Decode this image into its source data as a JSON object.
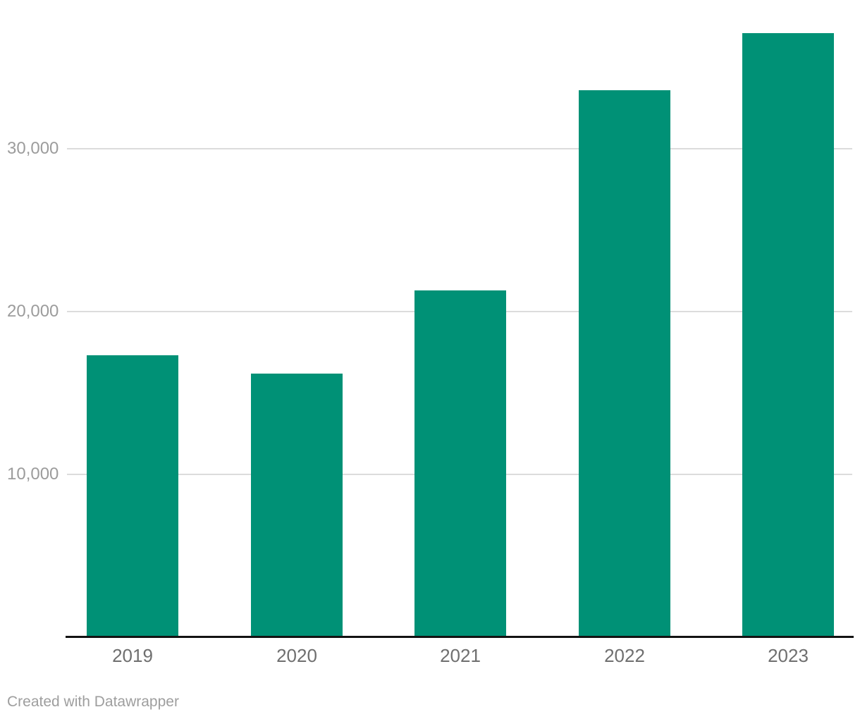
{
  "chart_data": {
    "type": "bar",
    "categories": [
      "2019",
      "2020",
      "2021",
      "2022",
      "2023"
    ],
    "values": [
      17300,
      16200,
      21300,
      33600,
      37100
    ],
    "title": "",
    "xlabel": "",
    "ylabel": "",
    "ylim": [
      0,
      38000
    ],
    "yticks": [
      {
        "value": 10000,
        "label": "10,000"
      },
      {
        "value": 20000,
        "label": "20,000"
      },
      {
        "value": 30000,
        "label": "30,000"
      }
    ],
    "grid": true,
    "legend_position": "none",
    "bar_color": "#009176"
  },
  "colors": {
    "bar": "#009176",
    "gridline": "#dcdcdc",
    "axis_line": "#131313",
    "ytick_text": "#9c9c9c",
    "xtick_text": "#6f6f6f",
    "footer_text": "#9e9e9e",
    "background": "#ffffff"
  },
  "footer": {
    "credit": "Created with Datawrapper"
  }
}
